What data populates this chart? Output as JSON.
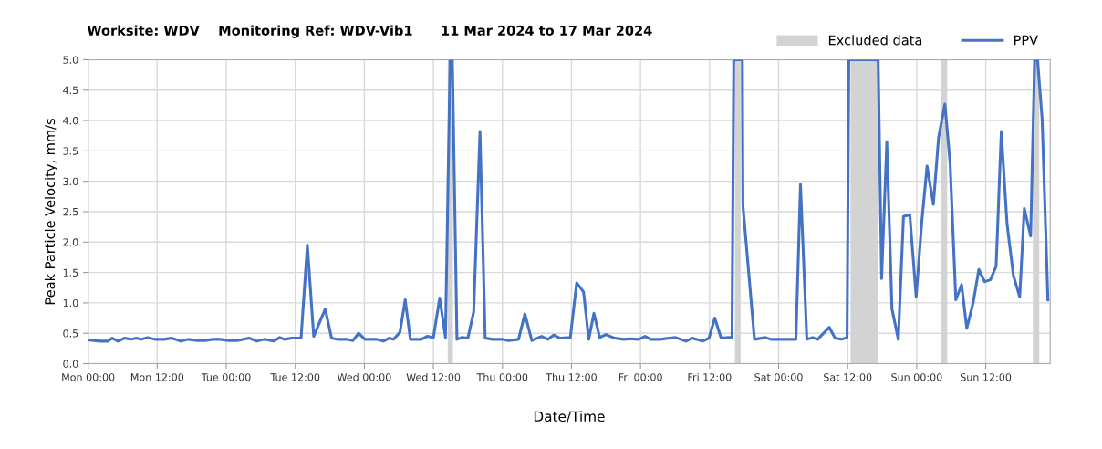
{
  "chart_data": {
    "type": "line",
    "title": "Worksite: WDV    Monitoring Ref: WDV-Vib1      11 Mar 2024 to 17 Mar 2024",
    "xlabel": "Date/Time",
    "ylabel": "Peak Particle Velocity, mm/s",
    "xlim": [
      "2024-03-11T00:00",
      "2024-03-17T23:12"
    ],
    "ylim": [
      0,
      5.0
    ],
    "xticks": [
      {
        "value": "2024-03-11T00:00",
        "label": "Mon 00:00"
      },
      {
        "value": "2024-03-11T12:00",
        "label": "Mon 12:00"
      },
      {
        "value": "2024-03-12T00:00",
        "label": "Tue 00:00"
      },
      {
        "value": "2024-03-12T12:00",
        "label": "Tue 12:00"
      },
      {
        "value": "2024-03-13T00:00",
        "label": "Wed 00:00"
      },
      {
        "value": "2024-03-13T12:00",
        "label": "Wed 12:00"
      },
      {
        "value": "2024-03-14T00:00",
        "label": "Thu 00:00"
      },
      {
        "value": "2024-03-14T12:00",
        "label": "Thu 12:00"
      },
      {
        "value": "2024-03-15T00:00",
        "label": "Fri 00:00"
      },
      {
        "value": "2024-03-15T12:00",
        "label": "Fri 12:00"
      },
      {
        "value": "2024-03-16T00:00",
        "label": "Sat 00:00"
      },
      {
        "value": "2024-03-16T12:00",
        "label": "Sat 12:00"
      },
      {
        "value": "2024-03-17T00:00",
        "label": "Sun 00:00"
      },
      {
        "value": "2024-03-17T12:00",
        "label": "Sun 12:00"
      }
    ],
    "yticks": [
      {
        "value": 0,
        "label": "0.0"
      },
      {
        "value": 0.5,
        "label": "0.5"
      },
      {
        "value": 1.0,
        "label": "1.0"
      },
      {
        "value": 1.5,
        "label": "1.5"
      },
      {
        "value": 2.0,
        "label": "2.0"
      },
      {
        "value": 2.5,
        "label": "2.5"
      },
      {
        "value": 3.0,
        "label": "3.0"
      },
      {
        "value": 3.5,
        "label": "3.5"
      },
      {
        "value": 4.0,
        "label": "4.0"
      },
      {
        "value": 4.5,
        "label": "4.5"
      },
      {
        "value": 5.0,
        "label": "5.0"
      }
    ],
    "grid": true,
    "legend": "top right",
    "marker": "none",
    "line_style": "solid",
    "bands": [
      {
        "axis": "x",
        "from": "2024-03-13T14:30",
        "to": "2024-03-13T15:24",
        "label": "Excluded data",
        "color": "#d3d3d3"
      },
      {
        "axis": "x",
        "from": "2024-03-15T16:24",
        "to": "2024-03-15T17:24",
        "color": "#d3d3d3"
      },
      {
        "axis": "x",
        "from": "2024-03-16T12:30",
        "to": "2024-03-16T17:12",
        "color": "#d3d3d3"
      },
      {
        "axis": "x",
        "from": "2024-03-17T04:18",
        "to": "2024-03-17T05:18",
        "color": "#d3d3d3"
      },
      {
        "axis": "x",
        "from": "2024-03-17T20:12",
        "to": "2024-03-17T21:18",
        "color": "#d3d3d3"
      }
    ],
    "series": [
      {
        "name": "PPV",
        "color": "#4472c4",
        "x": [
          "2024-03-11T00:12",
          "2024-03-11T02:06",
          "2024-03-11T03:24",
          "2024-03-11T04:12",
          "2024-03-11T05:12",
          "2024-03-11T06:18",
          "2024-03-11T07:24",
          "2024-03-11T08:24",
          "2024-03-11T09:12",
          "2024-03-11T10:18",
          "2024-03-11T11:36",
          "2024-03-11T13:12",
          "2024-03-11T14:30",
          "2024-03-11T16:06",
          "2024-03-11T17:24",
          "2024-03-11T19:00",
          "2024-03-11T20:18",
          "2024-03-11T21:36",
          "2024-03-11T23:00",
          "2024-03-12T00:18",
          "2024-03-12T01:54",
          "2024-03-12T04:00",
          "2024-03-12T05:18",
          "2024-03-12T06:36",
          "2024-03-12T08:12",
          "2024-03-12T09:18",
          "2024-03-12T10:06",
          "2024-03-12T11:24",
          "2024-03-12T13:00",
          "2024-03-12T14:06",
          "2024-03-12T15:12",
          "2024-03-12T17:12",
          "2024-03-12T18:18",
          "2024-03-12T19:18",
          "2024-03-12T20:54",
          "2024-03-12T22:00",
          "2024-03-12T23:00",
          "2024-03-13T00:06",
          "2024-03-13T02:12",
          "2024-03-13T03:18",
          "2024-03-13T04:18",
          "2024-03-13T05:06",
          "2024-03-13T06:12",
          "2024-03-13T07:06",
          "2024-03-13T08:00",
          "2024-03-13T09:54",
          "2024-03-13T10:54",
          "2024-03-13T12:00",
          "2024-03-13T13:06",
          "2024-03-13T14:06",
          "2024-03-13T14:54",
          "2024-03-13T15:18",
          "2024-03-13T16:06",
          "2024-03-13T16:54",
          "2024-03-13T18:00",
          "2024-03-13T19:00",
          "2024-03-13T20:06",
          "2024-03-13T21:00",
          "2024-03-13T22:18",
          "2024-03-13T23:54",
          "2024-03-14T01:00",
          "2024-03-14T02:48",
          "2024-03-14T03:54",
          "2024-03-14T05:06",
          "2024-03-14T06:48",
          "2024-03-14T07:54",
          "2024-03-14T08:54",
          "2024-03-14T10:00",
          "2024-03-14T11:48",
          "2024-03-14T12:54",
          "2024-03-14T14:06",
          "2024-03-14T15:00",
          "2024-03-14T15:54",
          "2024-03-14T16:54",
          "2024-03-14T18:00",
          "2024-03-14T19:30",
          "2024-03-14T21:06",
          "2024-03-14T22:06",
          "2024-03-14T23:42",
          "2024-03-15T00:48",
          "2024-03-15T01:48",
          "2024-03-15T03:24",
          "2024-03-15T05:00",
          "2024-03-15T06:06",
          "2024-03-15T07:54",
          "2024-03-15T09:00",
          "2024-03-15T10:48",
          "2024-03-15T11:54",
          "2024-03-15T12:54",
          "2024-03-15T14:00",
          "2024-03-15T15:18",
          "2024-03-15T15:54",
          "2024-03-15T16:12",
          "2024-03-15T17:42",
          "2024-03-15T17:48",
          "2024-03-15T18:48",
          "2024-03-15T19:48",
          "2024-03-15T21:42",
          "2024-03-15T22:42",
          "2024-03-16T03:00",
          "2024-03-16T03:48",
          "2024-03-16T04:54",
          "2024-03-16T05:54",
          "2024-03-16T06:48",
          "2024-03-16T08:48",
          "2024-03-16T09:48",
          "2024-03-16T10:54",
          "2024-03-16T11:54",
          "2024-03-16T12:12",
          "2024-03-16T17:18",
          "2024-03-16T17:54",
          "2024-03-16T18:48",
          "2024-03-16T19:42",
          "2024-03-16T20:48",
          "2024-03-16T21:42",
          "2024-03-16T22:48",
          "2024-03-16T23:54",
          "2024-03-17T00:54",
          "2024-03-17T01:48",
          "2024-03-17T02:54",
          "2024-03-17T03:48",
          "2024-03-17T04:54",
          "2024-03-17T05:48",
          "2024-03-17T06:48",
          "2024-03-17T07:48",
          "2024-03-17T08:42",
          "2024-03-17T09:48",
          "2024-03-17T10:48",
          "2024-03-17T11:48",
          "2024-03-17T12:48",
          "2024-03-17T13:48",
          "2024-03-17T14:42",
          "2024-03-17T15:42",
          "2024-03-17T16:48",
          "2024-03-17T17:54",
          "2024-03-17T18:42",
          "2024-03-17T19:48",
          "2024-03-17T20:30",
          "2024-03-17T21:00",
          "2024-03-17T21:48",
          "2024-03-17T22:48"
        ],
        "values": [
          0.39,
          0.37,
          0.37,
          0.42,
          0.37,
          0.42,
          0.4,
          0.42,
          0.4,
          0.43,
          0.4,
          0.4,
          0.42,
          0.37,
          0.4,
          0.38,
          0.38,
          0.4,
          0.4,
          0.38,
          0.38,
          0.42,
          0.37,
          0.4,
          0.37,
          0.43,
          0.4,
          0.42,
          0.42,
          1.95,
          0.45,
          0.9,
          0.42,
          0.4,
          0.4,
          0.38,
          0.5,
          0.4,
          0.4,
          0.37,
          0.42,
          0.4,
          0.52,
          1.05,
          0.4,
          0.4,
          0.45,
          0.43,
          1.08,
          0.43,
          5.0,
          5.0,
          0.4,
          0.43,
          0.42,
          0.85,
          3.82,
          0.42,
          0.4,
          0.4,
          0.38,
          0.4,
          0.82,
          0.38,
          0.45,
          0.4,
          0.47,
          0.42,
          0.43,
          1.33,
          1.18,
          0.4,
          0.83,
          0.43,
          0.48,
          0.42,
          0.4,
          0.41,
          0.4,
          0.45,
          0.4,
          0.4,
          0.42,
          0.43,
          0.37,
          0.42,
          0.37,
          0.42,
          0.75,
          0.42,
          0.43,
          0.43,
          5.0,
          5.0,
          2.6,
          1.5,
          0.4,
          0.43,
          0.4,
          0.4,
          2.95,
          0.4,
          0.43,
          0.4,
          0.6,
          0.42,
          0.4,
          0.43,
          5.0,
          5.0,
          1.4,
          3.65,
          0.9,
          0.4,
          2.42,
          2.45,
          1.1,
          2.35,
          3.25,
          2.62,
          3.72,
          4.27,
          3.3,
          1.05,
          1.3,
          0.58,
          1.0,
          1.55,
          1.35,
          1.38,
          1.6,
          3.82,
          2.3,
          1.45,
          1.1,
          2.55,
          2.1,
          5.0,
          5.0,
          4.02,
          1.05
        ]
      }
    ]
  }
}
